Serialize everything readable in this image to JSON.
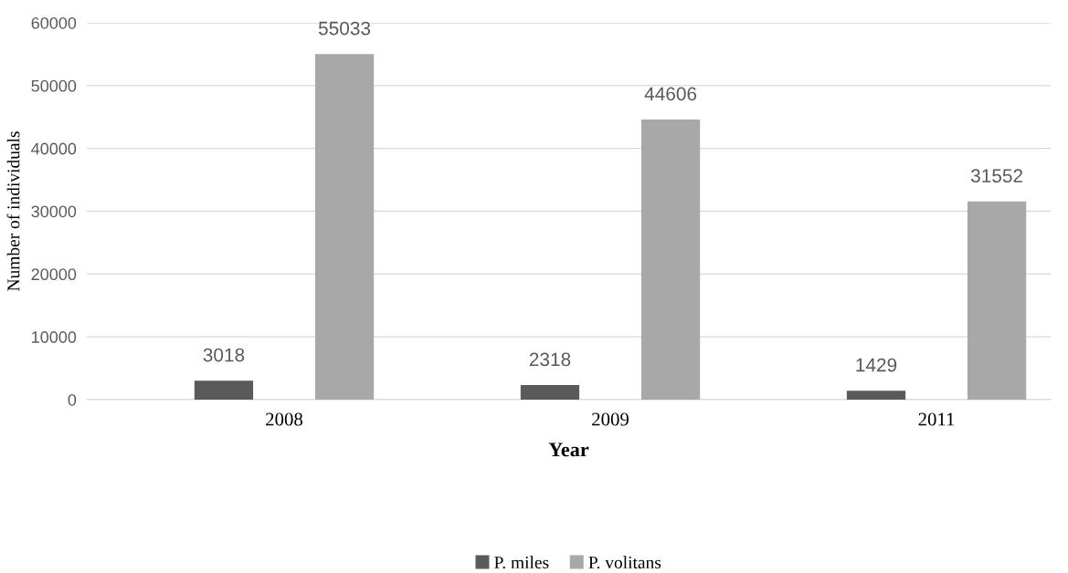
{
  "chart_data": {
    "type": "bar",
    "xlabel": "Year",
    "ylabel": "Number of individuals",
    "categories": [
      "2008",
      "2009",
      "2011"
    ],
    "series": [
      {
        "name": "P. miles",
        "color": "#5a5a5a",
        "values": [
          3018,
          2318,
          1429
        ]
      },
      {
        "name": "P. volitans",
        "color": "#a8a8a8",
        "values": [
          55033,
          44606,
          31552
        ]
      }
    ],
    "ylim": [
      0,
      60000
    ],
    "yticks": [
      0,
      10000,
      20000,
      30000,
      40000,
      50000,
      60000
    ],
    "grid": "y",
    "legend": "bottom",
    "data_labels": true
  }
}
